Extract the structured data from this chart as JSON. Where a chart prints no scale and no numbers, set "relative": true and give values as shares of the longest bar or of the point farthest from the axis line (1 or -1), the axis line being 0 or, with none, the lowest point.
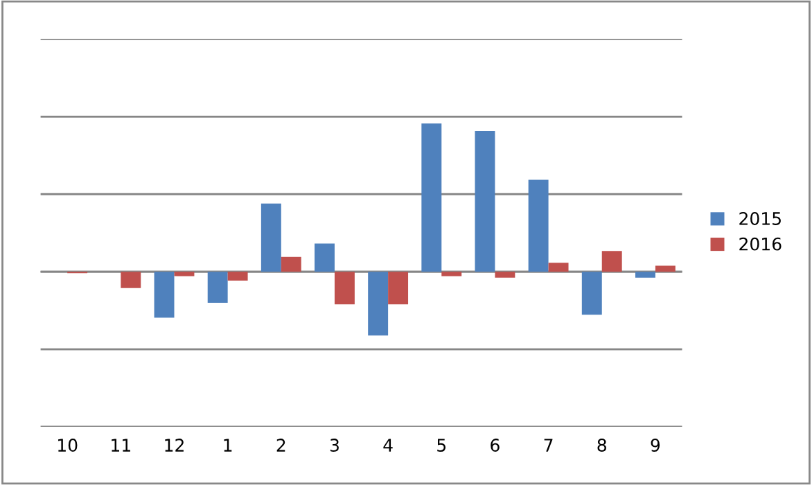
{
  "chart_data": {
    "type": "bar",
    "relative": true,
    "categories": [
      "10",
      "11",
      "12",
      "1",
      "2",
      "3",
      "4",
      "5",
      "6",
      "7",
      "8",
      "9"
    ],
    "series": [
      {
        "name": "2015",
        "color": "#4f81bd",
        "values": [
          0,
          0,
          -0.31,
          -0.21,
          0.46,
          0.19,
          -0.43,
          1,
          0.95,
          0.62,
          -0.29,
          -0.04
        ]
      },
      {
        "name": "2016",
        "color": "#c0504d",
        "values": [
          -0.01,
          -0.11,
          -0.03,
          -0.06,
          0.1,
          -0.22,
          -0.22,
          -0.03,
          -0.04,
          0.06,
          0.14,
          0.04
        ]
      }
    ],
    "grid": "y",
    "legend": "right"
  }
}
